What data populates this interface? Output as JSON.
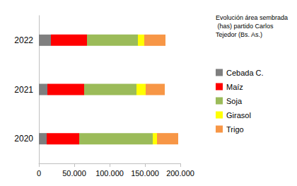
{
  "chart_data": {
    "type": "bar",
    "title": "Evolución área sembrada (has) partido Carlos Tejedor (Bs. As.)",
    "orientation": "horizontal",
    "stacked": true,
    "grid": false,
    "legend": "right",
    "categories": [
      "2020",
      "2021",
      "2022"
    ],
    "series": [
      {
        "name": "Cebada C.",
        "color": "#7f7f7f",
        "values": [
          11000,
          12000,
          17000
        ]
      },
      {
        "name": "Maíz",
        "color": "#ff0000",
        "values": [
          46000,
          52000,
          51000
        ]
      },
      {
        "name": "Soja",
        "color": "#9bbb59",
        "values": [
          104000,
          74000,
          72000
        ]
      },
      {
        "name": "Girasol",
        "color": "#ffff00",
        "values": [
          6000,
          13000,
          9000
        ]
      },
      {
        "name": "Trigo",
        "color": "#f79646",
        "values": [
          30000,
          27000,
          30000
        ]
      }
    ],
    "xlim": [
      0,
      200000
    ],
    "xticks": [
      0,
      {
        "value": 50000,
        "label": "50.000"
      },
      {
        "value": 100000,
        "label": "100.000"
      },
      {
        "value": 150000,
        "label": "150.000"
      },
      {
        "value": 200000,
        "label": "200.000"
      }
    ]
  }
}
